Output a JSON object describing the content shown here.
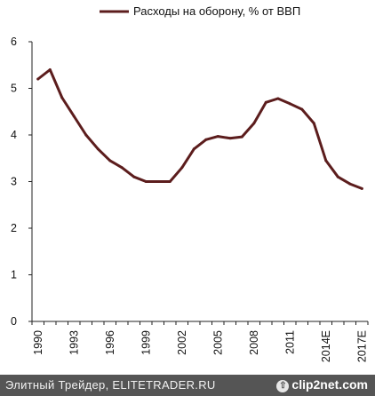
{
  "chart_data": {
    "type": "line",
    "title": "",
    "xlabel": "",
    "ylabel": "",
    "ylim": [
      0,
      6
    ],
    "yticks": [
      "0",
      "1",
      "2",
      "3",
      "4",
      "5",
      "6"
    ],
    "xtick_labels": [
      "1990",
      "1993",
      "1996",
      "1999",
      "2002",
      "2005",
      "2008",
      "2011",
      "2014E",
      "2017E"
    ],
    "x": [
      "1990",
      "1991",
      "1992",
      "1993",
      "1994",
      "1995",
      "1996",
      "1997",
      "1998",
      "1999",
      "2000",
      "2001",
      "2002",
      "2003",
      "2004",
      "2005",
      "2006",
      "2007",
      "2008",
      "2009",
      "2010",
      "2011",
      "2012",
      "2013",
      "2014E",
      "2015E",
      "2016E",
      "2017E"
    ],
    "series": [
      {
        "name": "Расходы на оборону, % от ВВП",
        "color": "#5c1d1d",
        "values": [
          5.2,
          5.4,
          4.8,
          4.4,
          4.0,
          3.7,
          3.45,
          3.3,
          3.1,
          3.0,
          3.0,
          3.0,
          3.3,
          3.7,
          3.9,
          3.97,
          3.93,
          3.96,
          4.25,
          4.7,
          4.78,
          4.67,
          4.55,
          4.25,
          3.45,
          3.1,
          2.95,
          2.85
        ]
      }
    ],
    "legend_position": "top-center",
    "grid": false
  },
  "footer": {
    "credit": "Элитный Трейдер, ELITETRADER.RU",
    "logo_icon": "⇧",
    "logo_text": "clip2net.com"
  }
}
